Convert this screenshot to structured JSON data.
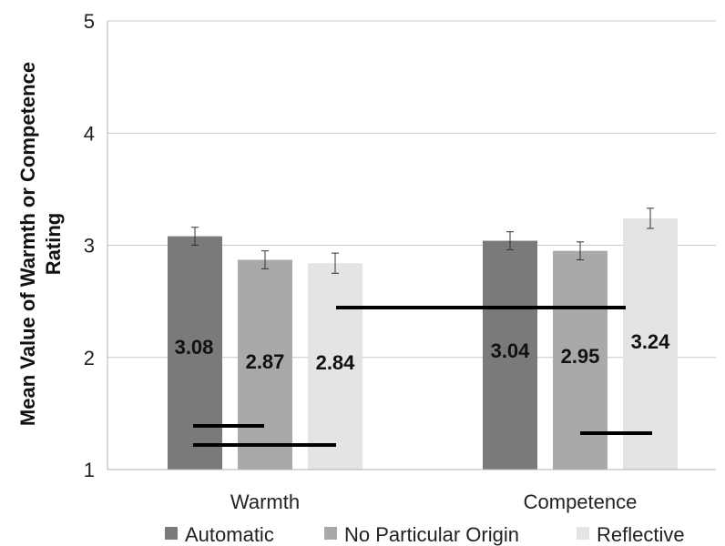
{
  "chart_data": {
    "type": "bar",
    "title": "",
    "xlabel": "",
    "ylabel": [
      "Mean Value of Warmth or Competence",
      "Rating"
    ],
    "ylim": [
      1,
      5
    ],
    "yticks": [
      "1",
      "2",
      "3",
      "4",
      "5"
    ],
    "categories": [
      "Warmth",
      "Competence"
    ],
    "series": [
      {
        "name": "Automatic",
        "color": "#7a7a7a",
        "values": [
          3.08,
          3.04
        ],
        "errors": [
          0.08,
          0.08
        ],
        "labels": [
          "3.08",
          "3.04"
        ]
      },
      {
        "name": "No Particular Origin",
        "color": "#a9a9a9",
        "values": [
          2.87,
          2.95
        ],
        "errors": [
          0.08,
          0.08
        ],
        "labels": [
          "2.87",
          "2.95"
        ]
      },
      {
        "name": "Reflective",
        "color": "#e4e4e4",
        "values": [
          2.84,
          3.24
        ],
        "errors": [
          0.09,
          0.09
        ],
        "labels": [
          "2.84",
          "3.24"
        ]
      }
    ],
    "grid": true,
    "legend": "bottom"
  }
}
